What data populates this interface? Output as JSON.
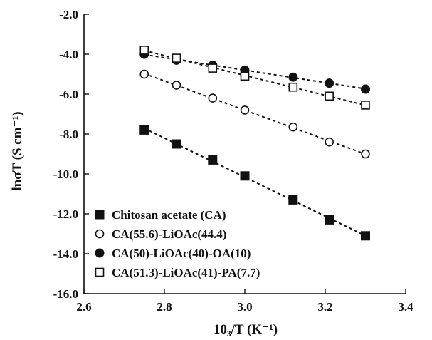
{
  "chart_data": {
    "type": "scatter",
    "xlabel": "10₃/T (K⁻¹)",
    "ylabel": "lnσT (S cm⁻¹)",
    "xlim": [
      2.6,
      3.4
    ],
    "ylim": [
      -16.0,
      -2.0
    ],
    "x_ticks": [
      "2.6",
      "2.8",
      "3.0",
      "3.2",
      "3.4"
    ],
    "y_ticks": [
      "-2.0",
      "-4.0",
      "-6.0",
      "-8.0",
      "-10.0",
      "-12.0",
      "-14.0",
      "-16.0"
    ],
    "grid": false,
    "legend_position": "bottom-left",
    "series": [
      {
        "name": "Chitosan acetate (CA)",
        "marker": "filled-square",
        "x": [
          2.75,
          2.83,
          2.92,
          3.0,
          3.12,
          3.21,
          3.3
        ],
        "y": [
          -7.8,
          -8.5,
          -9.3,
          -10.1,
          -11.3,
          -12.3,
          -13.1
        ]
      },
      {
        "name": "CA(55.6)-LiOAc(44.4)",
        "marker": "open-circle",
        "x": [
          2.75,
          2.83,
          2.92,
          3.0,
          3.12,
          3.21,
          3.3
        ],
        "y": [
          -5.0,
          -5.55,
          -6.2,
          -6.8,
          -7.65,
          -8.4,
          -9.0
        ]
      },
      {
        "name": "CA(50)-LiOAc(40)-OA(10)",
        "marker": "filled-circle",
        "x": [
          2.75,
          2.83,
          2.92,
          3.0,
          3.12,
          3.21,
          3.3
        ],
        "y": [
          -4.0,
          -4.3,
          -4.55,
          -4.8,
          -5.15,
          -5.45,
          -5.75
        ]
      },
      {
        "name": "CA(51.3)-LiOAc(41)-PA(7.7)",
        "marker": "open-square",
        "x": [
          2.75,
          2.83,
          2.92,
          3.0,
          3.12,
          3.21,
          3.3
        ],
        "y": [
          -3.8,
          -4.2,
          -4.7,
          -5.1,
          -5.65,
          -6.1,
          -6.55
        ]
      }
    ]
  }
}
